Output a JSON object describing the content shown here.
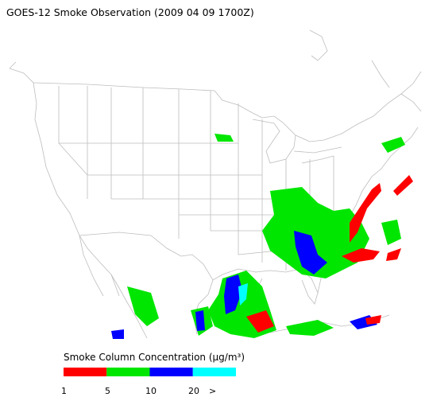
{
  "title": "GOES-12 Smoke Observation (2009 04 09  1700Z)",
  "legend": {
    "title": "Smoke Column Concentration (µg/m³)",
    "colors": [
      "#ff0000",
      "#00e600",
      "#0000ff",
      "#00ffff"
    ],
    "ticks": [
      "1",
      "5",
      "10",
      "20",
      ">"
    ]
  }
}
